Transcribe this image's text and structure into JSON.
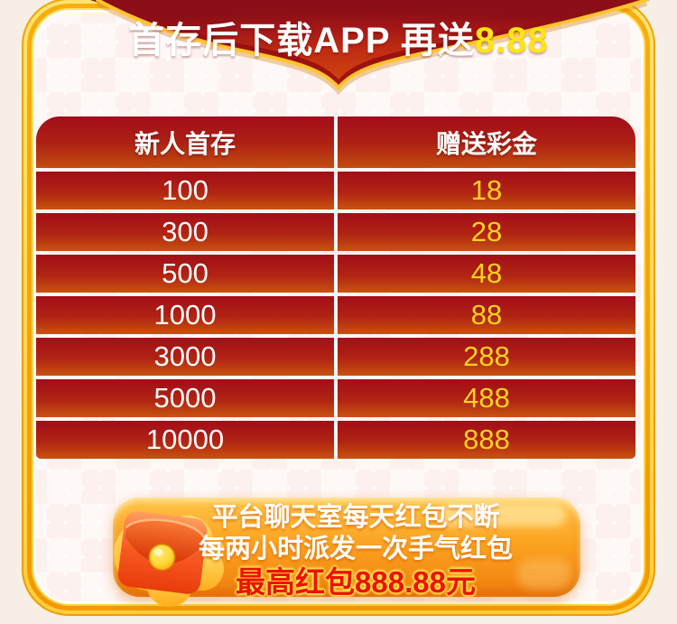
{
  "top_banner": {
    "text": "首存后下载APP 再送",
    "highlight": "8.88"
  },
  "table": {
    "headers": [
      "新人首存",
      "赠送彩金"
    ],
    "rows": [
      [
        "100",
        "18"
      ],
      [
        "300",
        "28"
      ],
      [
        "500",
        "48"
      ],
      [
        "1000",
        "88"
      ],
      [
        "3000",
        "288"
      ],
      [
        "5000",
        "488"
      ],
      [
        "10000",
        "888"
      ]
    ]
  },
  "bottom_banner": {
    "line1": "平台聊天室每天红包不断",
    "line2": "每两小时派发一次手气红包",
    "line3": "最高红包888.88元",
    "icon": "red-envelope-icon"
  },
  "colors": {
    "frame_gold": "#f5a201",
    "banner_red_dark": "#8c0e16",
    "banner_red_bright": "#cc3a10",
    "row_red_top": "#a30d18",
    "row_orange_bottom": "#c85310",
    "bonus_gold_text": "#ffd51c",
    "highlight_yellow": "#ffe512",
    "pill_orange": "#f5911a",
    "pill_red_text": "#ec1200",
    "page_cream": "#f7eee5",
    "content_pink": "#fdf1ef"
  }
}
